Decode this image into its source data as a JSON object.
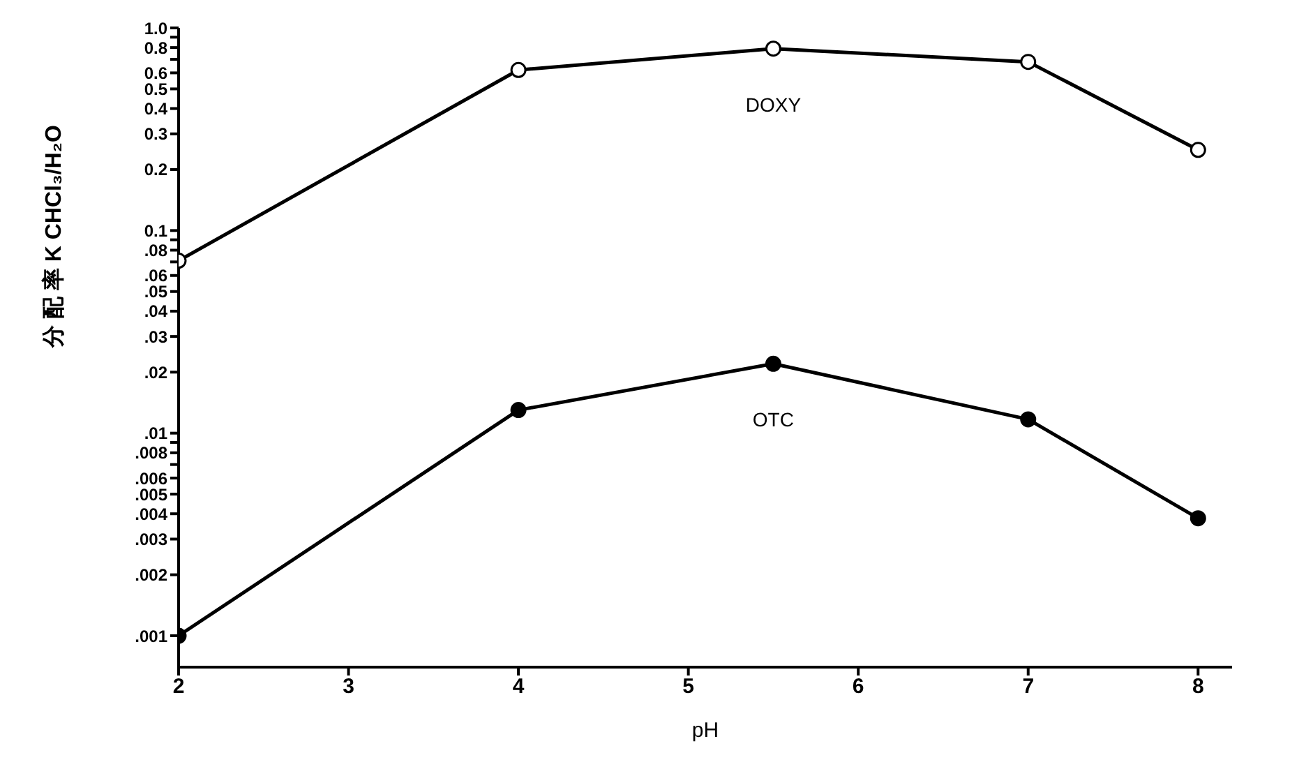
{
  "chart_data": {
    "type": "line",
    "xlabel": "pH",
    "ylabel": "分 配 率   K CHCl₃/H₂O",
    "x": [
      2,
      4,
      5.5,
      7,
      8
    ],
    "series": [
      {
        "name": "DOXY",
        "color": "#000000",
        "values": [
          0.071,
          0.62,
          0.79,
          0.68,
          0.25
        ]
      },
      {
        "name": "OTC",
        "color": "#000000",
        "values": [
          0.001,
          0.013,
          0.022,
          0.0117,
          0.0038
        ]
      }
    ],
    "xlim": [
      2,
      8.2
    ],
    "xticks": [
      2,
      3,
      4,
      5,
      6,
      7,
      8
    ],
    "ylim": [
      0.0007,
      1
    ],
    "log": "y",
    "yticks": [
      {
        "value": 1,
        "label": "1.0"
      },
      {
        "value": 0.9,
        "label": null
      },
      {
        "value": 0.8,
        "label": "0.8"
      },
      {
        "value": 0.7,
        "label": null
      },
      {
        "value": 0.6,
        "label": "0.6"
      },
      {
        "value": 0.5,
        "label": "0.5"
      },
      {
        "value": 0.4,
        "label": "0.4"
      },
      {
        "value": 0.3,
        "label": "0.3"
      },
      {
        "value": 0.2,
        "label": "0.2"
      },
      {
        "value": 0.1,
        "label": "0.1"
      },
      {
        "value": 0.09,
        "label": null
      },
      {
        "value": 0.08,
        "label": ".08"
      },
      {
        "value": 0.07,
        "label": null
      },
      {
        "value": 0.06,
        "label": ".06"
      },
      {
        "value": 0.05,
        "label": ".05"
      },
      {
        "value": 0.04,
        "label": ".04"
      },
      {
        "value": 0.03,
        "label": ".03"
      },
      {
        "value": 0.02,
        "label": ".02"
      },
      {
        "value": 0.01,
        "label": ".01"
      },
      {
        "value": 0.009,
        "label": null
      },
      {
        "value": 0.008,
        "label": ".008"
      },
      {
        "value": 0.007,
        "label": null
      },
      {
        "value": 0.006,
        "label": ".006"
      },
      {
        "value": 0.005,
        "label": ".005"
      },
      {
        "value": 0.004,
        "label": ".004"
      },
      {
        "value": 0.003,
        "label": ".003"
      },
      {
        "value": 0.002,
        "label": ".002"
      },
      {
        "value": 0.001,
        "label": ".001"
      }
    ],
    "grid": false,
    "legend": false,
    "marker": "circle",
    "line_style": "solid"
  }
}
